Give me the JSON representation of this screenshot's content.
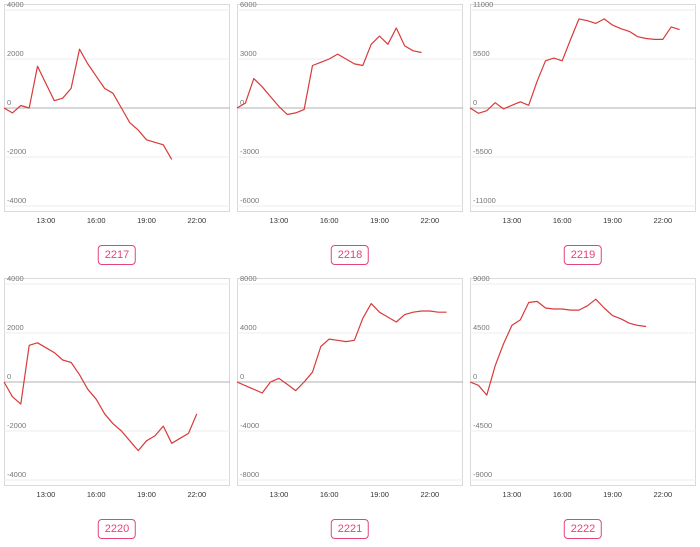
{
  "colors": {
    "line": "#d93a3a",
    "badge": "#e4447a"
  },
  "chart_data": [
    {
      "type": "line",
      "label": "2217",
      "ylim": [
        -4000,
        4000
      ],
      "yticks": [
        4000,
        2000,
        0,
        -2000,
        -4000
      ],
      "xticks": [
        "13:00",
        "16:00",
        "19:00",
        "22:00"
      ],
      "x": [
        "10:30",
        "11:00",
        "11:30",
        "12:00",
        "12:30",
        "13:00",
        "13:30",
        "14:00",
        "14:30",
        "15:00",
        "15:30",
        "16:00",
        "16:30",
        "17:00",
        "17:30",
        "18:00",
        "18:30",
        "19:00",
        "19:30",
        "20:00",
        "20:30"
      ],
      "series": [
        {
          "values": [
            0,
            -200,
            100,
            0,
            1700,
            1000,
            300,
            400,
            800,
            2400,
            1800,
            1300,
            800,
            600,
            0,
            -600,
            -900,
            -1300,
            -1400,
            -1500,
            -2100
          ]
        }
      ]
    },
    {
      "type": "line",
      "label": "2218",
      "ylim": [
        -6000,
        6000
      ],
      "yticks": [
        6000,
        3000,
        0,
        -3000,
        -6000
      ],
      "xticks": [
        "13:00",
        "16:00",
        "19:00",
        "22:00"
      ],
      "x": [
        "10:30",
        "11:00",
        "11:30",
        "12:00",
        "12:30",
        "13:00",
        "13:30",
        "14:00",
        "14:30",
        "15:00",
        "15:30",
        "16:00",
        "16:30",
        "17:00",
        "17:30",
        "18:00",
        "18:30",
        "19:00",
        "19:30",
        "20:00",
        "20:30",
        "21:00",
        "21:30"
      ],
      "series": [
        {
          "values": [
            0,
            300,
            1800,
            1300,
            700,
            100,
            -400,
            -300,
            -100,
            2600,
            2800,
            3000,
            3300,
            3000,
            2700,
            2600,
            3900,
            4400,
            3900,
            4900,
            3800,
            3500,
            3400
          ]
        }
      ]
    },
    {
      "type": "line",
      "label": "2219",
      "ylim": [
        -11000,
        11000
      ],
      "yticks": [
        11000,
        5500,
        0,
        -5500,
        -11000
      ],
      "xticks": [
        "13:00",
        "16:00",
        "19:00",
        "22:00"
      ],
      "x": [
        "10:30",
        "11:00",
        "11:30",
        "12:00",
        "12:30",
        "13:00",
        "13:30",
        "14:00",
        "14:30",
        "15:00",
        "15:30",
        "16:00",
        "16:30",
        "17:00",
        "17:30",
        "18:00",
        "18:30",
        "19:00",
        "19:30",
        "20:00",
        "20:30",
        "21:00",
        "21:30",
        "22:00",
        "22:30",
        "23:00"
      ],
      "series": [
        {
          "values": [
            0,
            -600,
            -300,
            600,
            -100,
            300,
            700,
            300,
            3000,
            5300,
            5600,
            5300,
            7700,
            10000,
            9800,
            9500,
            10000,
            9300,
            8900,
            8600,
            8000,
            7800,
            7700,
            7700,
            9100,
            8800
          ]
        }
      ]
    },
    {
      "type": "line",
      "label": "2220",
      "ylim": [
        -4000,
        4000
      ],
      "yticks": [
        4000,
        2000,
        0,
        -2000,
        -4000
      ],
      "xticks": [
        "13:00",
        "16:00",
        "19:00",
        "22:00"
      ],
      "x": [
        "10:30",
        "11:00",
        "11:30",
        "12:00",
        "12:30",
        "13:00",
        "13:30",
        "14:00",
        "14:30",
        "15:00",
        "15:30",
        "16:00",
        "16:30",
        "17:00",
        "17:30",
        "18:00",
        "18:30",
        "19:00",
        "19:30",
        "20:00",
        "20:30",
        "21:00",
        "21:30",
        "22:00"
      ],
      "series": [
        {
          "values": [
            0,
            -600,
            -900,
            1500,
            1600,
            1400,
            1200,
            900,
            800,
            300,
            -300,
            -700,
            -1300,
            -1700,
            -2000,
            -2400,
            -2800,
            -2400,
            -2200,
            -1800,
            -2500,
            -2300,
            -2100,
            -1300
          ]
        }
      ]
    },
    {
      "type": "line",
      "label": "2221",
      "ylim": [
        -8000,
        8000
      ],
      "yticks": [
        8000,
        4000,
        0,
        -4000,
        -8000
      ],
      "xticks": [
        "13:00",
        "16:00",
        "19:00",
        "22:00"
      ],
      "x": [
        "10:30",
        "11:00",
        "11:30",
        "12:00",
        "12:30",
        "13:00",
        "13:30",
        "14:00",
        "14:30",
        "15:00",
        "15:30",
        "16:00",
        "16:30",
        "17:00",
        "17:30",
        "18:00",
        "18:30",
        "19:00",
        "19:30",
        "20:00",
        "20:30",
        "21:00",
        "21:30",
        "22:00",
        "22:30",
        "23:00"
      ],
      "series": [
        {
          "values": [
            0,
            -300,
            -600,
            -900,
            0,
            300,
            -200,
            -700,
            0,
            800,
            2900,
            3500,
            3400,
            3300,
            3400,
            5200,
            6400,
            5700,
            5300,
            4900,
            5500,
            5700,
            5800,
            5800,
            5700,
            5700
          ]
        }
      ]
    },
    {
      "type": "line",
      "label": "2222",
      "ylim": [
        -9000,
        9000
      ],
      "yticks": [
        9000,
        4500,
        0,
        -4500,
        -9000
      ],
      "xticks": [
        "13:00",
        "16:00",
        "19:00",
        "22:00"
      ],
      "x": [
        "10:30",
        "11:00",
        "11:30",
        "12:00",
        "12:30",
        "13:00",
        "13:30",
        "14:00",
        "14:30",
        "15:00",
        "15:30",
        "16:00",
        "16:30",
        "17:00",
        "17:30",
        "18:00",
        "18:30",
        "19:00",
        "19:30",
        "20:00",
        "20:30",
        "21:00"
      ],
      "series": [
        {
          "values": [
            0,
            -300,
            -1200,
            1500,
            3500,
            5200,
            5700,
            7300,
            7400,
            6800,
            6700,
            6700,
            6600,
            6600,
            7000,
            7600,
            6800,
            6100,
            5800,
            5400,
            5200,
            5100
          ]
        }
      ]
    }
  ]
}
